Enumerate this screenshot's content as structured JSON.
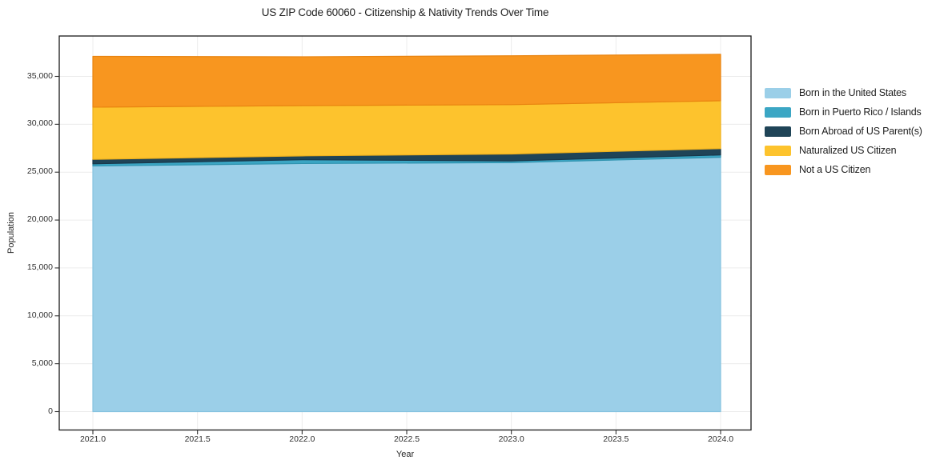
{
  "chart": {
    "title": "US ZIP Code 60060 - Citizenship & Nativity Trends Over Time",
    "xlabel": "Year",
    "ylabel": "Population"
  },
  "chart_data": {
    "type": "area",
    "stacked": true,
    "title": "US ZIP Code 60060 - Citizenship & Nativity Trends Over Time",
    "xlabel": "Year",
    "ylabel": "Population",
    "x": [
      2021,
      2022,
      2023,
      2024
    ],
    "series": [
      {
        "name": "Born in the United States",
        "color": "#9bcfe8",
        "edge": "#86c3e0",
        "values": [
          25650,
          25900,
          26000,
          26550
        ]
      },
      {
        "name": "Born in Puerto Rico / Islands",
        "color": "#3ba6c4",
        "edge": "#2f93af",
        "values": [
          220,
          400,
          170,
          250
        ]
      },
      {
        "name": "Born Abroad of US Parent(s)",
        "color": "#1f4457",
        "edge": "#18374a",
        "values": [
          470,
          400,
          730,
          660
        ]
      },
      {
        "name": "Naturalized US Citizen",
        "color": "#fdc32d",
        "edge": "#efb11d",
        "values": [
          5450,
          5250,
          5150,
          5000
        ]
      },
      {
        "name": "Not a US Citizen",
        "color": "#f8961f",
        "edge": "#e98410",
        "values": [
          5300,
          5100,
          5100,
          4850
        ]
      }
    ],
    "totals": [
      37090,
      37050,
      37150,
      37310
    ],
    "xticks": {
      "values": [
        2021.0,
        2021.5,
        2022.0,
        2022.5,
        2023.0,
        2023.5,
        2024.0
      ],
      "labels": [
        "2021.0",
        "2021.5",
        "2022.0",
        "2022.5",
        "2023.0",
        "2023.5",
        "2024.0"
      ]
    },
    "yticks": {
      "values": [
        0,
        5000,
        10000,
        15000,
        20000,
        25000,
        30000,
        35000
      ],
      "labels": [
        "0",
        "5,000",
        "10,000",
        "15,000",
        "20,000",
        "25,000",
        "30,000",
        "35,000"
      ]
    },
    "xlim": [
      2020.85,
      2024.15
    ],
    "ylim": [
      0,
      39200
    ],
    "grid": true,
    "legend_position": "right-outside"
  },
  "colors": {
    "grid": "#ececec",
    "axis": "#1a1a1a",
    "tick": "#333333",
    "background": "#ffffff"
  }
}
